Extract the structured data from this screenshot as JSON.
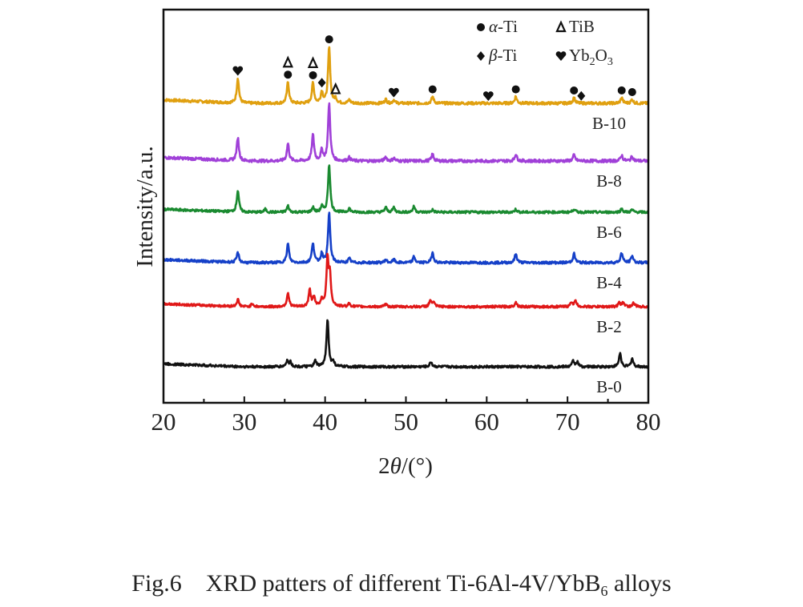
{
  "chart_data": {
    "type": "line",
    "title": "",
    "xlabel": "2θ/(°)",
    "ylabel": "Intensity/a.u.",
    "xlim": [
      20,
      80
    ],
    "xticks": [
      20,
      30,
      40,
      50,
      60,
      70,
      80
    ],
    "xticks_minor": [
      25,
      35,
      45,
      55,
      65,
      75
    ],
    "yticks": [],
    "grid": false,
    "legend_position": "top-right",
    "legend": [
      {
        "symbol": "circle",
        "label": "α-Ti"
      },
      {
        "symbol": "triangle",
        "label": "TiB"
      },
      {
        "symbol": "diamond",
        "label": "β-Ti"
      },
      {
        "symbol": "heart",
        "label": "Yb2O3"
      }
    ],
    "series": [
      {
        "name": "B-10",
        "color": "#e0a010",
        "offset": 5,
        "peaks": [
          [
            29.2,
            0.45
          ],
          [
            35.4,
            0.38
          ],
          [
            38.5,
            0.36
          ],
          [
            39.6,
            0.2
          ],
          [
            40.5,
            1.0
          ],
          [
            41.3,
            0.08
          ],
          [
            43.0,
            0.06
          ],
          [
            47.5,
            0.07
          ],
          [
            48.5,
            0.06
          ],
          [
            53.3,
            0.12
          ],
          [
            63.6,
            0.12
          ],
          [
            70.8,
            0.1
          ],
          [
            76.7,
            0.1
          ],
          [
            78.0,
            0.07
          ]
        ]
      },
      {
        "name": "B-8",
        "color": "#a040d8",
        "offset": 4,
        "peaks": [
          [
            29.2,
            0.4
          ],
          [
            35.4,
            0.3
          ],
          [
            38.5,
            0.45
          ],
          [
            39.6,
            0.18
          ],
          [
            40.5,
            1.0
          ],
          [
            43.0,
            0.06
          ],
          [
            47.5,
            0.07
          ],
          [
            48.5,
            0.05
          ],
          [
            53.3,
            0.12
          ],
          [
            63.6,
            0.12
          ],
          [
            70.8,
            0.1
          ],
          [
            76.7,
            0.1
          ],
          [
            78.0,
            0.08
          ]
        ]
      },
      {
        "name": "B-6",
        "color": "#1a8a30",
        "offset": 3,
        "peaks": [
          [
            29.2,
            0.45
          ],
          [
            32.6,
            0.06
          ],
          [
            35.4,
            0.13
          ],
          [
            38.5,
            0.1
          ],
          [
            39.6,
            0.12
          ],
          [
            40.5,
            1.0
          ],
          [
            43.0,
            0.08
          ],
          [
            47.5,
            0.1
          ],
          [
            48.5,
            0.1
          ],
          [
            51.0,
            0.12
          ],
          [
            53.3,
            0.05
          ],
          [
            63.6,
            0.06
          ],
          [
            70.8,
            0.07
          ],
          [
            76.7,
            0.07
          ],
          [
            78.0,
            0.05
          ]
        ]
      },
      {
        "name": "B-4",
        "color": "#1540c8",
        "offset": 2,
        "peaks": [
          [
            29.2,
            0.2
          ],
          [
            35.4,
            0.38
          ],
          [
            38.5,
            0.4
          ],
          [
            39.6,
            0.18
          ],
          [
            40.5,
            1.0
          ],
          [
            43.0,
            0.08
          ],
          [
            47.5,
            0.06
          ],
          [
            48.5,
            0.06
          ],
          [
            51.0,
            0.12
          ],
          [
            53.3,
            0.2
          ],
          [
            63.6,
            0.18
          ],
          [
            70.8,
            0.18
          ],
          [
            76.7,
            0.2
          ],
          [
            78.0,
            0.14
          ]
        ]
      },
      {
        "name": "B-2",
        "color": "#e01818",
        "offset": 1,
        "peaks": [
          [
            29.2,
            0.15
          ],
          [
            31.0,
            0.07
          ],
          [
            35.4,
            0.3
          ],
          [
            38.1,
            0.35
          ],
          [
            38.6,
            0.2
          ],
          [
            39.6,
            0.15
          ],
          [
            40.3,
            1.0
          ],
          [
            40.6,
            0.6
          ],
          [
            43.0,
            0.07
          ],
          [
            47.5,
            0.05
          ],
          [
            53.0,
            0.12
          ],
          [
            53.4,
            0.1
          ],
          [
            63.6,
            0.1
          ],
          [
            70.5,
            0.1
          ],
          [
            71.0,
            0.12
          ],
          [
            76.4,
            0.08
          ],
          [
            76.9,
            0.1
          ],
          [
            78.2,
            0.08
          ]
        ]
      },
      {
        "name": "B-0",
        "color": "#111111",
        "offset": 0,
        "peaks": [
          [
            35.3,
            0.12
          ],
          [
            35.7,
            0.1
          ],
          [
            38.8,
            0.12
          ],
          [
            40.3,
            1.0
          ],
          [
            41.0,
            0.1
          ],
          [
            53.1,
            0.1
          ],
          [
            70.7,
            0.12
          ],
          [
            71.2,
            0.1
          ],
          [
            76.5,
            0.28
          ],
          [
            78.0,
            0.17
          ]
        ]
      }
    ],
    "annotations": [
      {
        "symbol": "heart",
        "x": 29.2
      },
      {
        "symbol": "circle",
        "x": 35.4
      },
      {
        "symbol": "triangle",
        "x": 35.4
      },
      {
        "symbol": "circle",
        "x": 38.5
      },
      {
        "symbol": "triangle",
        "x": 38.5
      },
      {
        "symbol": "diamond",
        "x": 39.6
      },
      {
        "symbol": "circle",
        "x": 40.5
      },
      {
        "symbol": "triangle",
        "x": 41.3
      },
      {
        "symbol": "heart",
        "x": 48.5
      },
      {
        "symbol": "circle",
        "x": 53.3
      },
      {
        "symbol": "heart",
        "x": 60.2
      },
      {
        "symbol": "circle",
        "x": 63.6
      },
      {
        "symbol": "circle",
        "x": 70.8
      },
      {
        "symbol": "diamond",
        "x": 71.7
      },
      {
        "symbol": "circle",
        "x": 76.7
      },
      {
        "symbol": "circle",
        "x": 78.0
      }
    ]
  },
  "caption": {
    "prefix": "Fig.6    XRD patters of different Ti-6Al-4V/YbB",
    "subscript": "6",
    "suffix": " alloys"
  }
}
